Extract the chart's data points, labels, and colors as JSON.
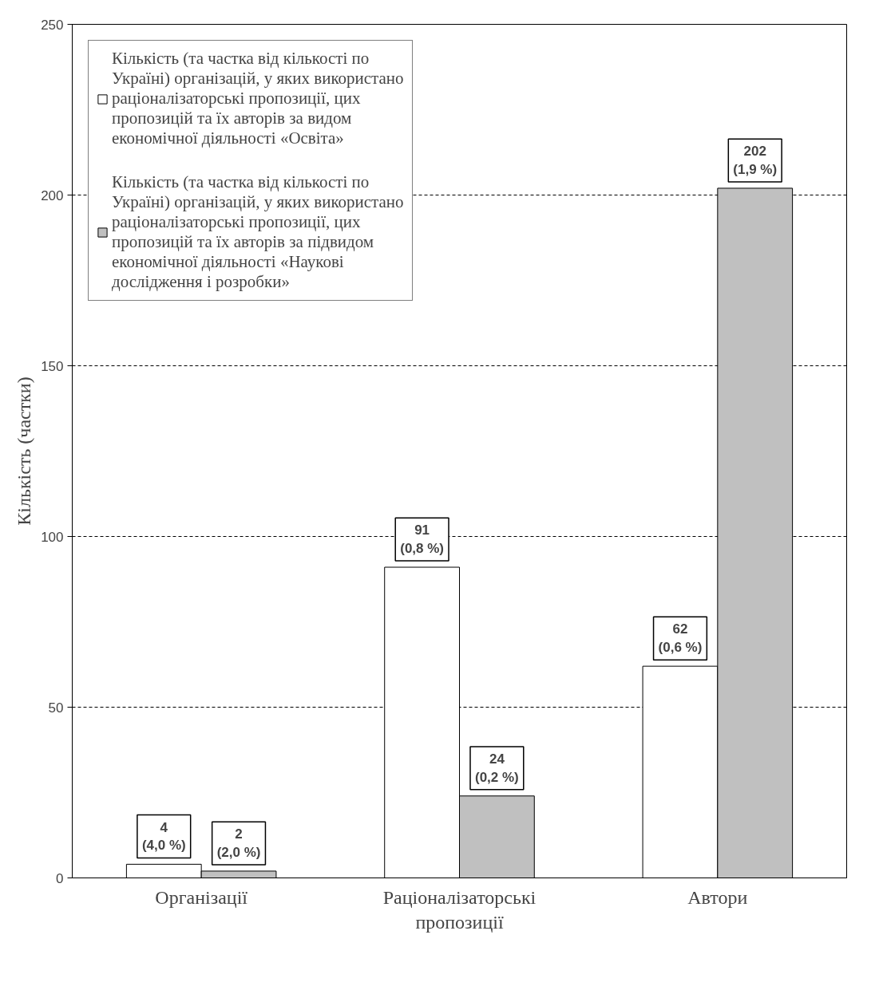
{
  "chart_data": {
    "type": "bar",
    "ylabel": "Кількість (частки)",
    "categories": [
      "Організації",
      "Раціоналізаторські пропозиції",
      "Автори"
    ],
    "series": [
      {
        "name": "Кількість (та частка від кількості по Україні) організацій, у яких використано раціоналізаторські пропозиції, цих пропозицій та їх авторів за видом економічної діяльності «Освіта»",
        "color": "#ffffff",
        "values": [
          4,
          91,
          62
        ],
        "value_labels": [
          "4\n(4,0 %)",
          "91\n(0,8 %)",
          "62\n(0,6 %)"
        ]
      },
      {
        "name": "Кількість (та частка від кількості по Україні) організацій, у яких використано раціоналізаторські пропозиції, цих пропозицій та їх авторів за підвидом економічної діяльності «Наукові дослідження і розробки»",
        "color": "#c0c0c0",
        "values": [
          2,
          24,
          202
        ],
        "value_labels": [
          "2\n(2,0 %)",
          "24\n(0,2 %)",
          "202\n(1,9 %)"
        ]
      }
    ],
    "ylim": [
      0,
      250
    ],
    "yticks": [
      0,
      50,
      100,
      150,
      200,
      250
    ],
    "grid": "y",
    "legend": "top left"
  }
}
